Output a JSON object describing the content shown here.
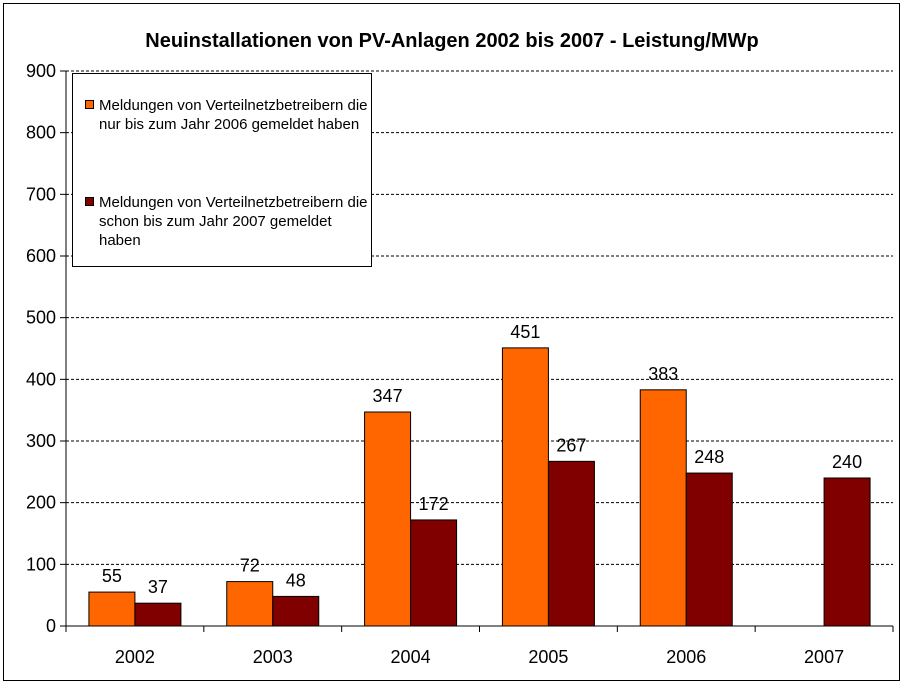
{
  "chart_data": {
    "type": "bar",
    "title": "Neuinstallationen von PV-Anlagen 2002 bis 2007  -  Leistung/MWp",
    "categories": [
      "2002",
      "2003",
      "2004",
      "2005",
      "2006",
      "2007"
    ],
    "series": [
      {
        "name": "Meldungen von Verteilnetzbetreibern die nur bis zum Jahr 2006 gemeldet haben",
        "values": [
          55,
          72,
          347,
          451,
          383,
          null
        ],
        "color": "#ff6600"
      },
      {
        "name": "Meldungen von Verteilnetzbetreibern die schon bis zum Jahr 2007 gemeldet haben",
        "values": [
          37,
          48,
          172,
          267,
          248,
          240
        ],
        "color": "#800000"
      }
    ],
    "ylim": [
      0,
      900
    ],
    "yticks": [
      0,
      100,
      200,
      300,
      400,
      500,
      600,
      700,
      800,
      900
    ],
    "grid": "horizontal dashed",
    "legend_position": "top-left",
    "xlabel": "",
    "ylabel": ""
  },
  "legend": {
    "item1": "Meldungen von Verteilnetzbetreibern die nur bis zum Jahr 2006 gemeldet haben",
    "item2": "Meldungen von Verteilnetzbetreibern die schon bis zum Jahr 2007 gemeldet haben"
  }
}
